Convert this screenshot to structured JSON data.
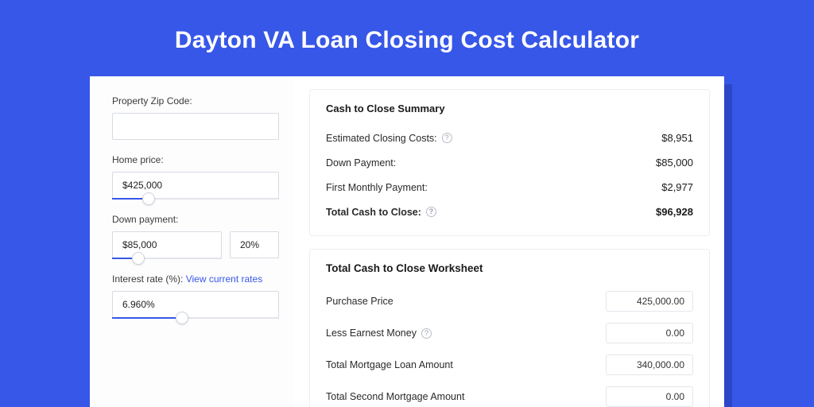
{
  "colors": {
    "page_bg": "#3757e8",
    "shadow": "#2b47c7",
    "card_bg": "#ffffff",
    "border": "#d8dbe3",
    "light_border": "#eceef3",
    "track": "#e2e4ea",
    "accent": "#3757e8",
    "text": "#1a1a1a",
    "label_text": "#3a3a3a",
    "help_border": "#b8bcc6"
  },
  "title": "Dayton VA Loan Closing Cost Calculator",
  "left": {
    "zip": {
      "label": "Property Zip Code:",
      "value": ""
    },
    "home_price": {
      "label": "Home price:",
      "value": "$425,000",
      "slider_pct": 22
    },
    "down_payment": {
      "label": "Down payment:",
      "value": "$85,000",
      "pct_value": "20%",
      "slider_pct": 24
    },
    "interest_rate": {
      "label_prefix": "Interest rate (%): ",
      "link_text": "View current rates",
      "value": "6.960%",
      "slider_pct": 42
    }
  },
  "summary": {
    "title": "Cash to Close Summary",
    "rows": [
      {
        "label": "Estimated Closing Costs:",
        "help": true,
        "value": "$8,951",
        "total": false
      },
      {
        "label": "Down Payment:",
        "help": false,
        "value": "$85,000",
        "total": false
      },
      {
        "label": "First Monthly Payment:",
        "help": false,
        "value": "$2,977",
        "total": false
      },
      {
        "label": "Total Cash to Close:",
        "help": true,
        "value": "$96,928",
        "total": true
      }
    ]
  },
  "worksheet": {
    "title": "Total Cash to Close Worksheet",
    "rows": [
      {
        "label": "Purchase Price",
        "help": false,
        "value": "425,000.00"
      },
      {
        "label": "Less Earnest Money",
        "help": true,
        "value": "0.00"
      },
      {
        "label": "Total Mortgage Loan Amount",
        "help": false,
        "value": "340,000.00"
      },
      {
        "label": "Total Second Mortgage Amount",
        "help": false,
        "value": "0.00"
      }
    ]
  }
}
